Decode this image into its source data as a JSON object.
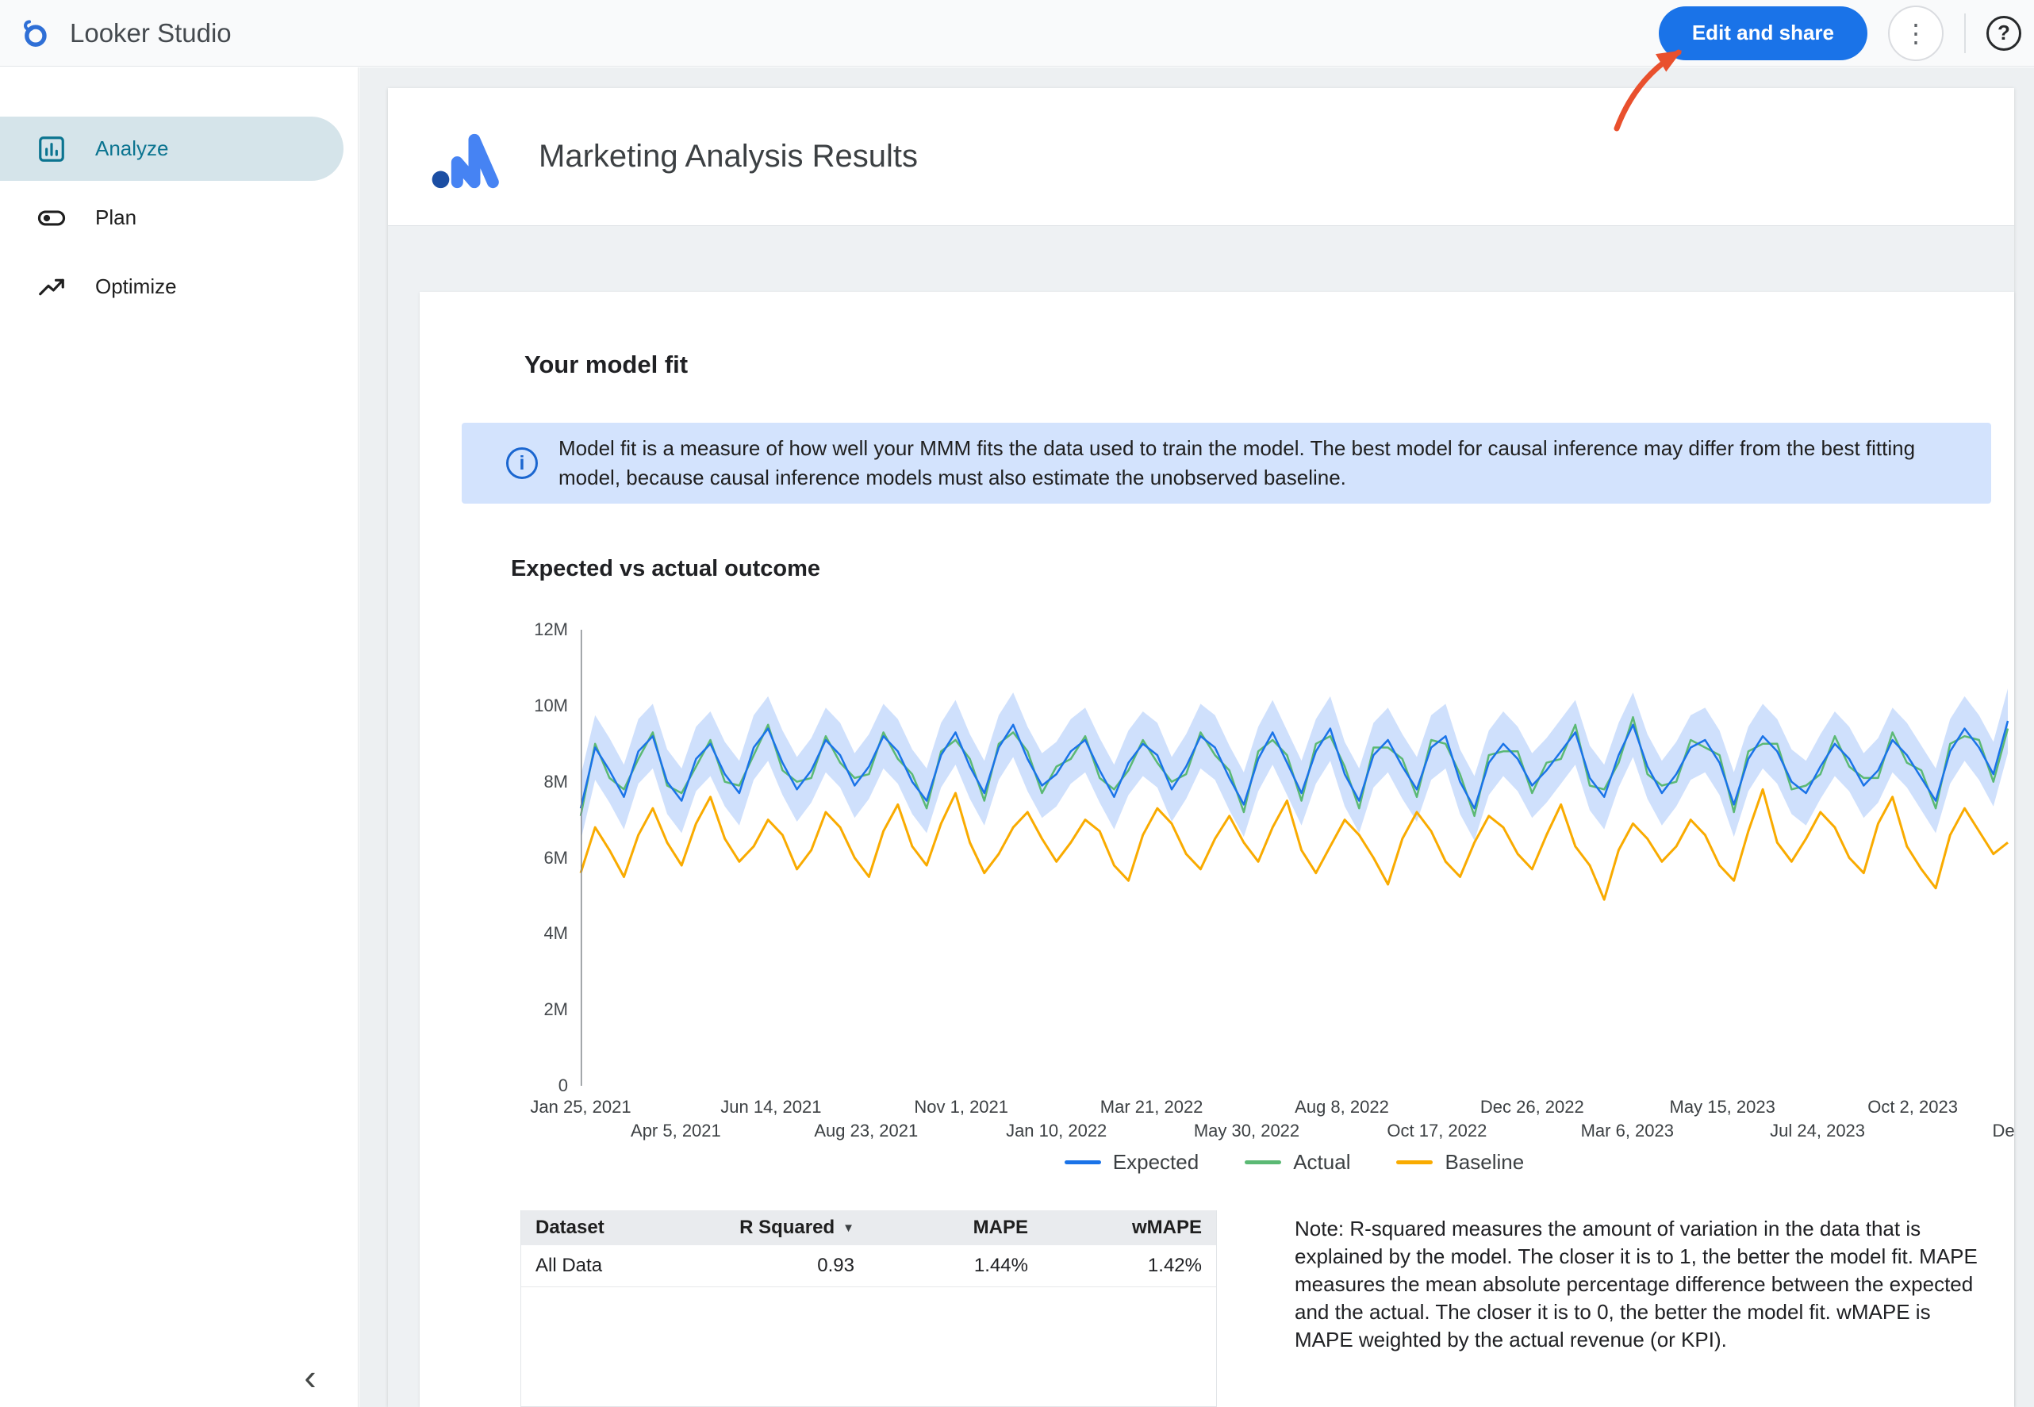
{
  "topbar": {
    "app_name": "Looker Studio",
    "edit_share_label": "Edit and share"
  },
  "icons": {
    "more": "⋮",
    "help": "?",
    "info": "i",
    "sort_desc": "▼",
    "collapse": "‹"
  },
  "sidebar": {
    "items": [
      {
        "label": "Analyze",
        "selected": true
      },
      {
        "label": "Plan",
        "selected": false
      },
      {
        "label": "Optimize",
        "selected": false
      }
    ]
  },
  "report": {
    "title": "Marketing Analysis Results",
    "model_fit_card": {
      "heading": "Your model fit",
      "info_banner": "Model fit is a measure of how well your MMM fits the data used to train the model. The best model for causal inference may differ from the best fitting model, because causal inference models must also estimate the unobserved baseline.",
      "chart_heading": "Expected vs actual outcome",
      "note": "Note: R-squared measures the amount of variation in the data that is explained by the model. The closer it is to 1, the better the model fit. MAPE measures the mean absolute percentage difference between the expected and the actual. The closer it is to 0, the better the model fit. wMAPE is MAPE weighted by the actual revenue (or KPI)."
    },
    "table": {
      "columns": [
        "Dataset",
        "R Squared",
        "MAPE",
        "wMAPE"
      ],
      "sorted_by": "R Squared",
      "rows": [
        {
          "dataset": "All Data",
          "r_squared": "0.93",
          "mape": "1.44%",
          "wmape": "1.42%"
        }
      ]
    }
  },
  "chart_data": {
    "type": "line",
    "title": "Expected vs actual outcome",
    "ylim": [
      0,
      12
    ],
    "y_unit": "M",
    "grid": false,
    "legend_position": "bottom",
    "y_ticks": [
      "12M",
      "10M",
      "8M",
      "6M",
      "4M",
      "2M",
      "0"
    ],
    "x_ticks": [
      "Jan 25, 2021",
      "Apr 5, 2021",
      "Jun 14, 2021",
      "Aug 23, 2021",
      "Nov 1, 2021",
      "Jan 10, 2022",
      "Mar 21, 2022",
      "May 30, 2022",
      "Aug 8, 2022",
      "Oct 17, 2022",
      "Dec 26, 2022",
      "Mar 6, 2023",
      "May 15, 2023",
      "Jul 24, 2023",
      "Oct 2, 2023",
      "Dec"
    ],
    "legend": [
      "Expected",
      "Actual",
      "Baseline"
    ],
    "colors": {
      "expected": "#1a73e8",
      "actual": "#5bb974",
      "baseline": "#f9ab00"
    },
    "band": {
      "series": "Expected",
      "halfwidth": 0.85,
      "color": "#a8c7fa",
      "opacity": 0.55
    },
    "series": [
      {
        "name": "Expected",
        "values": [
          7.3,
          8.9,
          8.3,
          7.6,
          8.8,
          9.2,
          8.0,
          7.5,
          8.6,
          9.0,
          8.2,
          7.7,
          8.9,
          9.4,
          8.5,
          7.8,
          8.3,
          9.1,
          8.7,
          7.9,
          8.4,
          9.2,
          8.8,
          8.0,
          7.5,
          8.7,
          9.3,
          8.4,
          7.7,
          8.9,
          9.5,
          8.6,
          7.9,
          8.2,
          8.8,
          9.1,
          8.3,
          7.6,
          8.5,
          9.0,
          8.7,
          7.8,
          8.4,
          9.2,
          8.9,
          8.1,
          7.4,
          8.6,
          9.3,
          8.5,
          7.7,
          8.8,
          9.4,
          8.2,
          7.5,
          8.7,
          9.1,
          8.4,
          7.8,
          8.9,
          9.2,
          8.0,
          7.3,
          8.5,
          9.0,
          8.6,
          7.9,
          8.3,
          8.8,
          9.3,
          8.1,
          7.6,
          8.7,
          9.5,
          8.4,
          7.7,
          8.2,
          8.9,
          9.1,
          8.5,
          7.4,
          8.6,
          9.2,
          8.8,
          8.0,
          7.7,
          8.4,
          9.0,
          8.6,
          7.9,
          8.3,
          9.1,
          8.7,
          8.1,
          7.5,
          8.8,
          9.4,
          8.9,
          8.2,
          9.6
        ]
      },
      {
        "name": "Actual",
        "values": [
          7.1,
          9.0,
          8.1,
          7.8,
          8.6,
          9.3,
          7.9,
          7.7,
          8.4,
          9.1,
          8.0,
          7.9,
          8.7,
          9.5,
          8.3,
          8.0,
          8.1,
          9.2,
          8.5,
          8.1,
          8.2,
          9.3,
          8.6,
          8.2,
          7.3,
          8.8,
          9.1,
          8.6,
          7.5,
          9.0,
          9.3,
          8.8,
          7.7,
          8.4,
          8.6,
          9.2,
          8.1,
          7.8,
          8.3,
          9.1,
          8.5,
          8.0,
          8.2,
          9.3,
          8.7,
          8.3,
          7.2,
          8.8,
          9.1,
          8.7,
          7.5,
          9.0,
          9.2,
          8.4,
          7.3,
          8.9,
          8.9,
          8.6,
          7.6,
          9.1,
          9.0,
          8.2,
          7.1,
          8.7,
          8.8,
          8.8,
          7.7,
          8.5,
          8.6,
          9.5,
          7.9,
          7.8,
          8.5,
          9.7,
          8.2,
          7.9,
          8.0,
          9.1,
          8.9,
          8.7,
          7.2,
          8.8,
          9.0,
          9.0,
          7.8,
          7.9,
          8.2,
          9.2,
          8.4,
          8.1,
          8.1,
          9.3,
          8.5,
          8.3,
          7.3,
          9.0,
          9.2,
          9.1,
          8.0,
          9.4
        ]
      },
      {
        "name": "Baseline",
        "values": [
          5.6,
          6.8,
          6.2,
          5.5,
          6.6,
          7.3,
          6.4,
          5.8,
          6.9,
          7.6,
          6.5,
          5.9,
          6.3,
          7.0,
          6.6,
          5.7,
          6.2,
          7.2,
          6.8,
          6.0,
          5.5,
          6.7,
          7.4,
          6.3,
          5.8,
          6.9,
          7.7,
          6.4,
          5.6,
          6.1,
          6.8,
          7.2,
          6.5,
          5.9,
          6.4,
          7.0,
          6.7,
          5.8,
          5.4,
          6.6,
          7.3,
          6.9,
          6.1,
          5.7,
          6.5,
          7.1,
          6.4,
          5.9,
          6.8,
          7.5,
          6.2,
          5.6,
          6.3,
          7.0,
          6.6,
          6.0,
          5.3,
          6.5,
          7.2,
          6.7,
          5.9,
          5.5,
          6.4,
          7.1,
          6.8,
          6.1,
          5.7,
          6.6,
          7.4,
          6.3,
          5.8,
          4.9,
          6.2,
          6.9,
          6.5,
          5.9,
          6.3,
          7.0,
          6.6,
          5.8,
          5.4,
          6.7,
          7.8,
          6.4,
          5.9,
          6.5,
          7.2,
          6.8,
          6.0,
          5.6,
          6.9,
          7.6,
          6.3,
          5.7,
          5.2,
          6.6,
          7.3,
          6.7,
          6.1,
          6.4
        ]
      }
    ]
  }
}
